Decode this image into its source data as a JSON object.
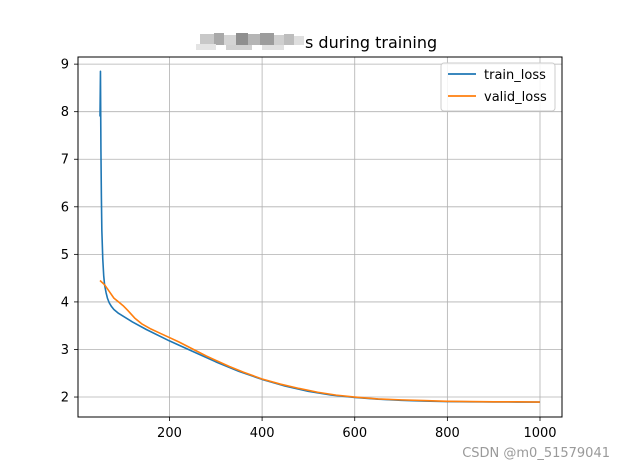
{
  "chart_data": {
    "type": "line",
    "title": "s during training",
    "xlabel": "",
    "ylabel": "",
    "xlim": [
      50,
      1000
    ],
    "ylim": [
      1.58,
      9.15
    ],
    "xticks": [
      200,
      400,
      600,
      800,
      1000
    ],
    "yticks": [
      2,
      3,
      4,
      5,
      6,
      7,
      8,
      9
    ],
    "grid": true,
    "legend_position": "top-right",
    "series": [
      {
        "name": "train_loss",
        "color": "#1f77b4",
        "x": [
          50,
          51,
          52,
          53,
          54,
          56,
          58,
          60,
          63,
          66,
          70,
          75,
          80,
          90,
          100,
          120,
          150,
          200,
          250,
          300,
          350,
          400,
          450,
          500,
          550,
          600,
          650,
          700,
          750,
          800,
          850,
          900,
          950,
          1000
        ],
        "values": [
          7.9,
          8.85,
          7.2,
          6.2,
          5.5,
          4.9,
          4.55,
          4.35,
          4.2,
          4.08,
          3.98,
          3.9,
          3.84,
          3.76,
          3.7,
          3.58,
          3.42,
          3.18,
          2.96,
          2.74,
          2.54,
          2.37,
          2.23,
          2.12,
          2.04,
          1.99,
          1.955,
          1.93,
          1.915,
          1.905,
          1.9,
          1.897,
          1.895,
          1.895
        ]
      },
      {
        "name": "valid_loss",
        "color": "#ff7f0e",
        "x": [
          50,
          60,
          70,
          80,
          90,
          100,
          110,
          125,
          140,
          160,
          180,
          200,
          220,
          240,
          260,
          280,
          300,
          330,
          360,
          400,
          440,
          480,
          520,
          560,
          600,
          650,
          700,
          750,
          800,
          850,
          900,
          950,
          1000
        ],
        "values": [
          4.45,
          4.36,
          4.22,
          4.08,
          4.0,
          3.92,
          3.82,
          3.66,
          3.54,
          3.43,
          3.34,
          3.25,
          3.16,
          3.06,
          2.96,
          2.86,
          2.77,
          2.64,
          2.52,
          2.38,
          2.27,
          2.18,
          2.1,
          2.04,
          2.0,
          1.96,
          1.94,
          1.925,
          1.91,
          1.905,
          1.9,
          1.9,
          1.895
        ]
      }
    ]
  },
  "watermark": "CSDN @m0_51579041"
}
